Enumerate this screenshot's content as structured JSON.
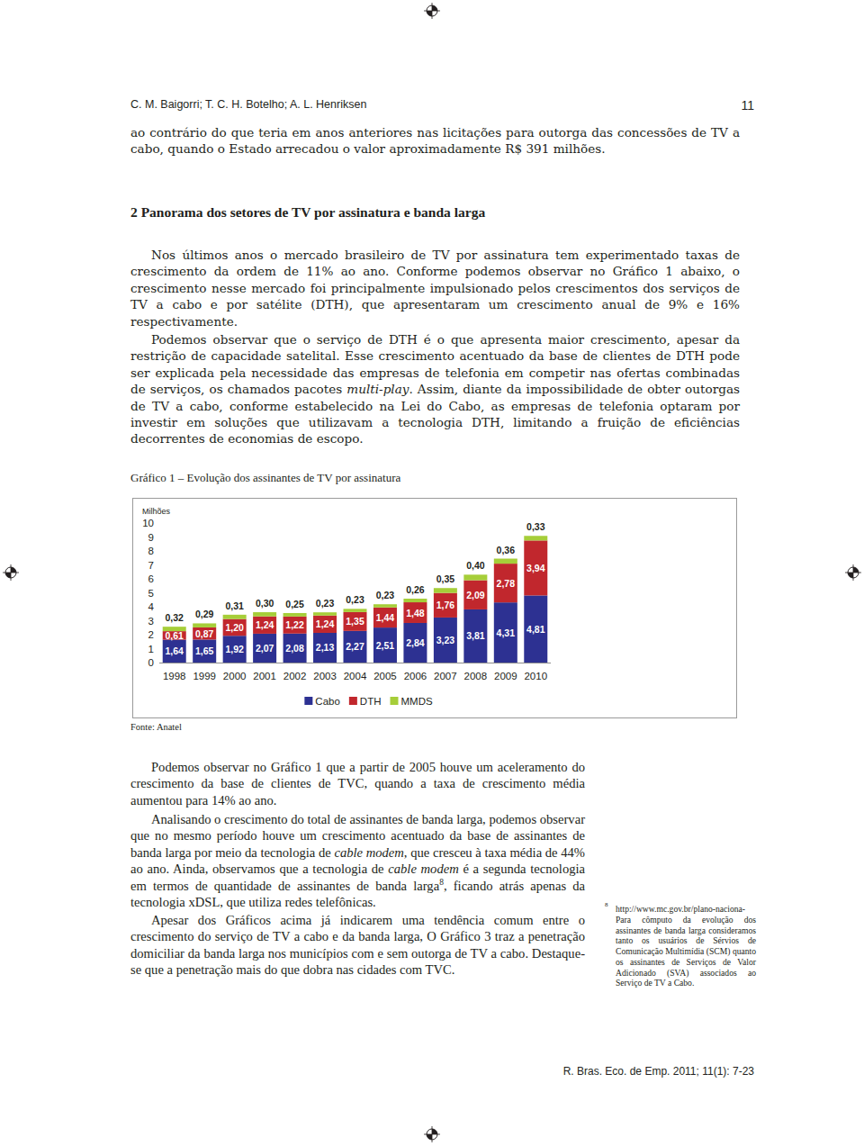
{
  "header": {
    "authors": "C. M. Baigorri; T. C. H. Botelho; A. L. Henriksen",
    "page_number": "11"
  },
  "document": {
    "intro_paragraph": {
      "runs": [
        "ao contrário do que teria em anos anteriores nas licitações para outorga das concessões de TV a cabo, quando o Estado arrecadou o valor aproximadamente R$ 391 milhões."
      ]
    },
    "section_heading": "2 Panorama dos setores de TV por assinatura e banda larga",
    "section_paragraphs": [
      {
        "runs": [
          "Nos últimos anos o mercado brasileiro de TV por assinatura tem experimentado taxas de crescimento da ordem de 11% ao ano. Conforme podemos observar no Gráfico 1 abaixo, o crescimento nesse mercado foi principalmente impulsionado pelos crescimentos dos serviços de TV a cabo e por satélite (DTH), que apresentaram um crescimento anual de 9% e 16% respectivamente."
        ]
      },
      {
        "runs": [
          "Podemos observar que o serviço de DTH é o que apresenta maior crescimento, apesar da restrição de capacidade satelital. Esse crescimento acentuado da base de clientes de DTH pode ser explicada pela necessidade das empresas de telefonia em competir nas ofertas combinadas de serviços, os chamados pacotes ",
          {
            "text": "multi-play",
            "italic": true
          },
          ". Assim, diante da impossibilidade de obter outorgas de TV a cabo, conforme estabelecido na Lei do Cabo, as empresas de telefonia optaram por investir em soluções que utilizavam a tecnologia DTH, limitando a fruição de eficiências decorrentes de economias de escopo."
        ]
      }
    ],
    "figure_source": "Fonte: Anatel",
    "analysis_paragraphs": [
      {
        "runs": [
          "Podemos observar no Gráfico 1 que a partir de 2005 houve um aceleramento do crescimento da base de clientes de TVC, quando a taxa de crescimento média aumentou para 14% ao ano."
        ]
      },
      {
        "runs": [
          "Analisando o crescimento do total de assinantes de banda larga, podemos observar que no mesmo período houve um crescimento acentuado da base de assinantes de banda larga por meio da tecnologia de ",
          {
            "text": "cable modem",
            "italic": true
          },
          ", que cresceu à taxa média de 44% ao ano. Ainda, observamos que a tecnologia de ",
          {
            "text": "cable modem",
            "italic": true
          },
          " é a segunda tecnologia em termos de quantidade de assinantes de banda larga",
          {
            "text": "8",
            "superscript": true
          },
          ", ficando atrás apenas da tecnologia xDSL, que utiliza redes telefônicas."
        ]
      },
      {
        "runs": [
          "Apesar dos Gráficos acima já indicarem uma tendência comum entre o crescimento do serviço de TV a cabo e da banda larga, O Gráfico 3 traz a penetração domiciliar da banda larga nos municípios com e sem outorga de TV a cabo.  Destaque-se que a penetração mais do que dobra nas cidades com TVC."
        ]
      }
    ],
    "footnote": {
      "marker": "8",
      "url": "http://www.mc.gov.br/plano-naciona-",
      "text": "Para cômputo da evolução dos assinantes de banda larga consideramos tanto os usuários de Sérvios de Comunicação Multimídia (SCM) quanto os assinantes de Serviços de Valor Adicionado (SVA) associados ao Serviço de TV a Cabo."
    },
    "footer": "R. Bras. Eco. de Emp. 2011; 11(1): 7-23"
  },
  "chart_data": {
    "type": "bar",
    "title": "Gráfico 1 – Evolução dos assinantes de TV por assinatura",
    "ylabel": "Milhões",
    "categories": [
      "1998",
      "1999",
      "2000",
      "2001",
      "2002",
      "2003",
      "2004",
      "2005",
      "2006",
      "2007",
      "2008",
      "2009",
      "2010"
    ],
    "series": [
      {
        "name": "Cabo",
        "color": "#2d3192",
        "values": [
          1.64,
          1.65,
          1.92,
          2.07,
          2.08,
          2.13,
          2.27,
          2.51,
          2.84,
          3.23,
          3.81,
          4.31,
          4.81
        ],
        "value_labels": [
          "1,64",
          "1,65",
          "1,92",
          "2,07",
          "2,08",
          "2,13",
          "2,27",
          "2,51",
          "2,84",
          "3,23",
          "3,81",
          "4,31",
          "4,81"
        ]
      },
      {
        "name": "DTH",
        "color": "#c1272d",
        "values": [
          0.61,
          0.87,
          1.2,
          1.24,
          1.22,
          1.24,
          1.35,
          1.44,
          1.48,
          1.76,
          2.09,
          2.78,
          3.94
        ],
        "value_labels": [
          "0,61",
          "0,87",
          "1,20",
          "1,24",
          "1,22",
          "1,24",
          "1,35",
          "1,44",
          "1,48",
          "1,76",
          "2,09",
          "2,78",
          "3,94"
        ]
      },
      {
        "name": "MMDS",
        "color": "#a6ce39",
        "values": [
          0.32,
          0.29,
          0.31,
          0.3,
          0.25,
          0.23,
          0.23,
          0.23,
          0.26,
          0.35,
          0.4,
          0.36,
          0.33
        ],
        "value_labels": [
          "0,32",
          "0,29",
          "0,31",
          "0,30",
          "0,25",
          "0,23",
          "0,23",
          "0,23",
          "0,26",
          "0,35",
          "0,40",
          "0,36",
          "0,33"
        ]
      }
    ],
    "stacked": true,
    "data_labels": true,
    "ylim": [
      0,
      10
    ],
    "yticks": [
      0,
      1,
      2,
      3,
      4,
      5,
      6,
      7,
      8,
      9,
      10
    ],
    "grid": false,
    "legend": "bottom"
  }
}
